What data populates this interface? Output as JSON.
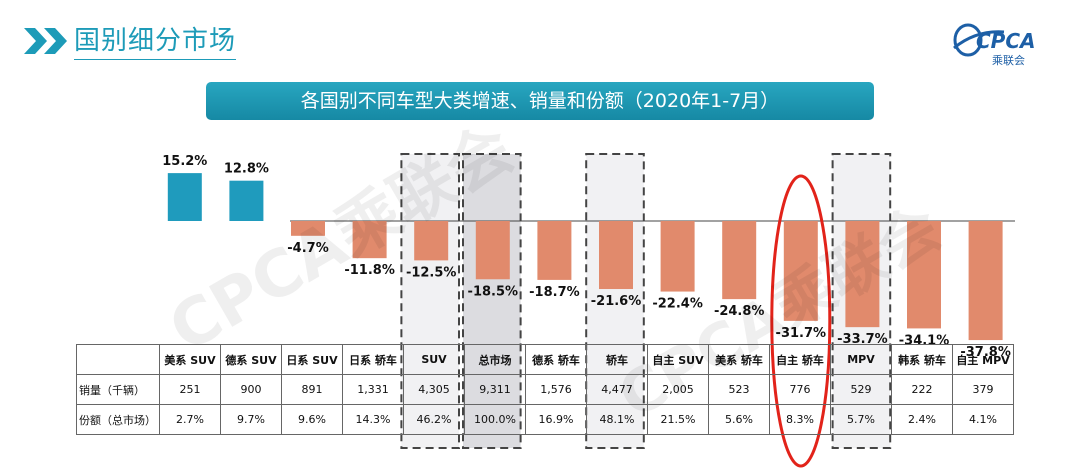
{
  "header": {
    "title": "国别细分市场",
    "logo_text": "CPCA",
    "logo_sub": "乘联会"
  },
  "banner": {
    "title": "各国别不同车型大类增速、销量和份额（2020年1-7月）"
  },
  "watermark": {
    "left": "CPCA乘联会",
    "right": "CPCA乘联会"
  },
  "colors": {
    "accent": "#1d9bb8",
    "positive": "#1f9bbd",
    "negative": "#e18a6c",
    "highlight": "#e2231a"
  },
  "chart_data": {
    "type": "bar",
    "title": "各国别不同车型大类增速、销量和份额（2020年1-7月）",
    "categories": [
      "美系 SUV",
      "德系 SUV",
      "日系 SUV",
      "日系 轿车",
      "SUV",
      "总市场",
      "德系 轿车",
      "轿车",
      "自主 SUV",
      "美系 轿车",
      "自主 轿车",
      "MPV",
      "韩系 轿车",
      "自主 MPV"
    ],
    "values": [
      15.2,
      12.8,
      -4.7,
      -11.8,
      -12.5,
      -18.5,
      -18.7,
      -21.6,
      -22.4,
      -24.8,
      -31.7,
      -33.7,
      -34.1,
      -37.8
    ],
    "value_labels": [
      "15.2%",
      "12.8%",
      "-4.7%",
      "-11.8%",
      "-12.5%",
      "-18.5%",
      "-18.7%",
      "-21.6%",
      "-22.4%",
      "-24.8%",
      "-31.7%",
      "-33.7%",
      "-34.1%",
      "-37.8%"
    ],
    "unit": "%",
    "ylim": [
      -40,
      20
    ],
    "xlabel": "",
    "ylabel": "",
    "boxed_categories": [
      "SUV",
      "总市场",
      "轿车",
      "MPV"
    ],
    "circled_category": "自主 轿车"
  },
  "table": {
    "rows": [
      {
        "label": "销量（千辆）",
        "values": [
          "251",
          "900",
          "891",
          "1,331",
          "4,305",
          "9,311",
          "1,576",
          "4,477",
          "2,005",
          "523",
          "776",
          "529",
          "222",
          "379"
        ]
      },
      {
        "label": "份额（总市场）",
        "values": [
          "2.7%",
          "9.7%",
          "9.6%",
          "14.3%",
          "46.2%",
          "100.0%",
          "16.9%",
          "48.1%",
          "21.5%",
          "5.6%",
          "8.3%",
          "5.7%",
          "2.4%",
          "4.1%"
        ]
      }
    ]
  }
}
